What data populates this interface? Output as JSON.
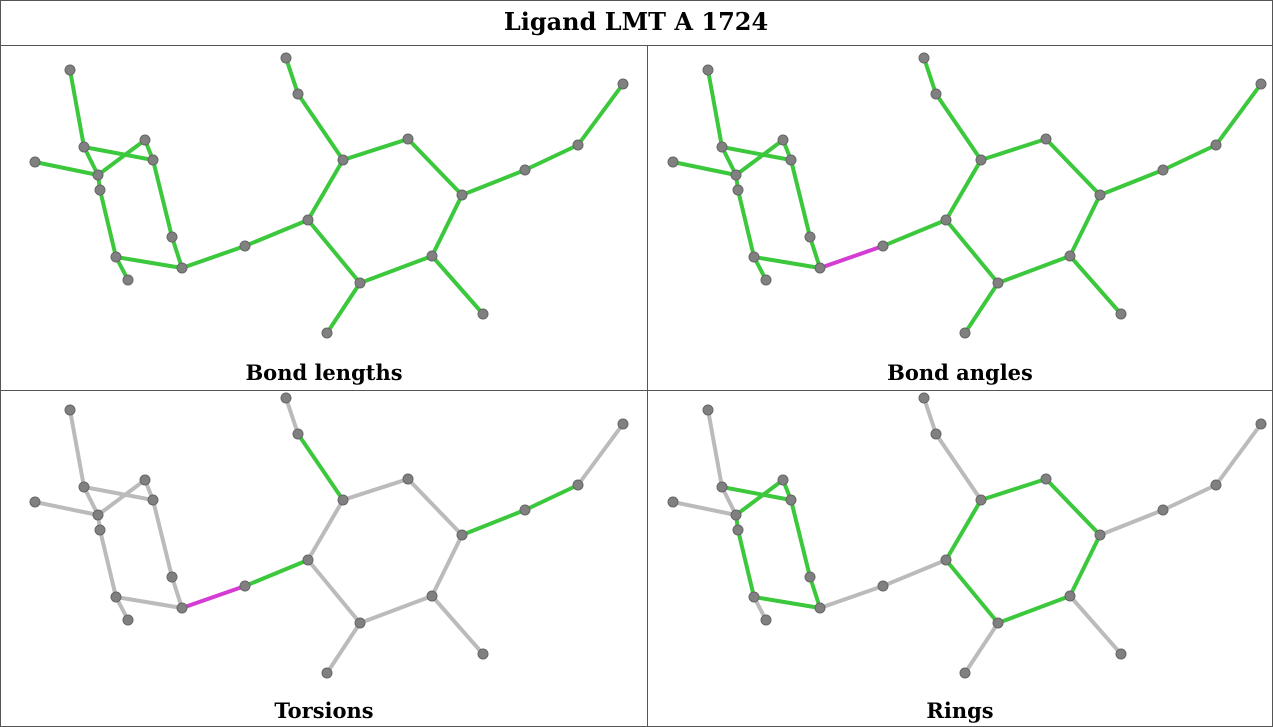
{
  "title": "Ligand LMT A 1724",
  "panels": [
    {
      "caption": "Bond lengths"
    },
    {
      "caption": "Bond angles"
    },
    {
      "caption": "Torsions"
    },
    {
      "caption": "Rings"
    }
  ]
}
